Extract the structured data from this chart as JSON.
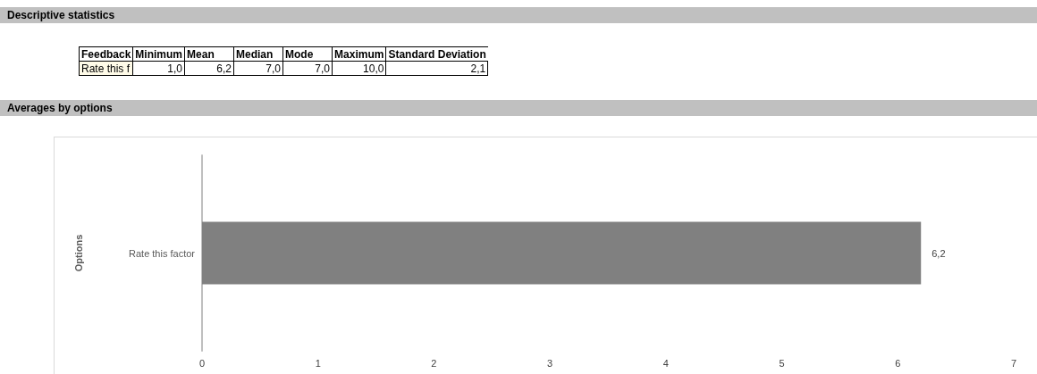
{
  "chart_data": [
    {
      "type": "other",
      "title": "Descriptive statistics",
      "xlabel": "Feedback",
      "categories": [
        "Minimum",
        "Mean",
        "Median",
        "Mode",
        "Maximum",
        "Standard Deviation"
      ],
      "y_categories": [
        "Rate this f"
      ],
      "values": [
        1.0,
        6.2,
        7.0,
        7.0,
        10.0,
        2.1
      ],
      "value_labels": [
        "1,0",
        "6,2",
        "7,0",
        "7,0",
        "10,0",
        "2,1"
      ]
    },
    {
      "type": "bar",
      "orientation": "horizontal",
      "title": "Averages by options",
      "ylabel": "Options",
      "categories": [
        "Rate this factor"
      ],
      "values": [
        6.2
      ],
      "color": "#808080",
      "value_labels": [
        "6,2"
      ],
      "xlim": [
        0,
        7
      ],
      "xticks": [
        0,
        1,
        2,
        3,
        4,
        5,
        6,
        7
      ],
      "grid": false
    }
  ]
}
